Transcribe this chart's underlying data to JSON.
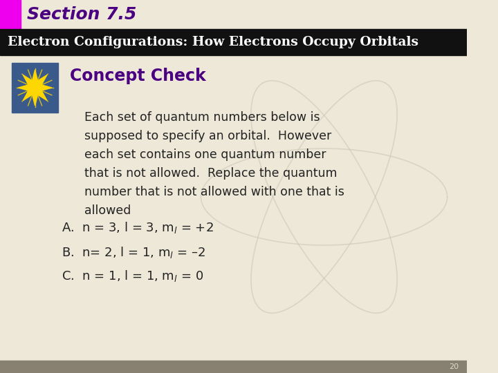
{
  "section_title": "Section 7.5",
  "section_bar_color": "#EE00EE",
  "section_title_color": "#4B0082",
  "header_text": "Electron Configurations: How Electrons Occupy Orbitals",
  "header_bg_color": "#111111",
  "header_text_color": "#FFFFFF",
  "concept_check_title": "Concept Check",
  "concept_check_color": "#4B0082",
  "body_lines": [
    "Each set of quantum numbers below is",
    "supposed to specify an orbital.  However",
    "each set contains one quantum number",
    "that is not allowed.  Replace the quantum",
    "number that is not allowed with one that is",
    "allowed"
  ],
  "item_A_pre": "A.  n = 3, l = 3, m",
  "item_A_end": " = +2",
  "item_B_pre": "B.  n= 2, l = 1, m",
  "item_B_end": " = –2",
  "item_C_pre": "C.  n = 1, l = 1, m",
  "item_C_end": " = 0",
  "bg_color": "#EDE8D8",
  "body_text_color": "#222222",
  "page_number": "20",
  "footer_color": "#888070",
  "img_bg_color": "#3a5a8c",
  "star_color": "#FFD700"
}
